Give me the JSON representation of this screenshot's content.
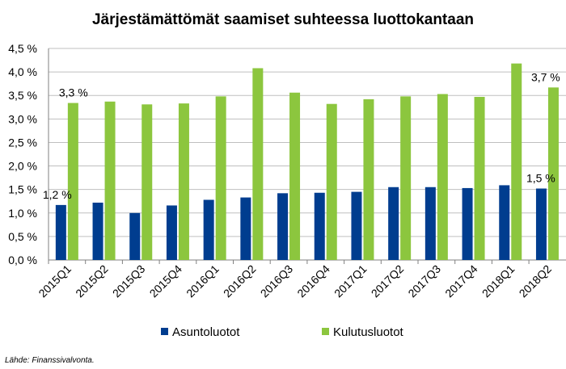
{
  "chart_data": {
    "type": "bar",
    "title": "Järjestämättömät saamiset suhteessa luottokantaan",
    "categories": [
      "2015Q1",
      "2015Q2",
      "2015Q3",
      "2015Q4",
      "2016Q1",
      "2016Q2",
      "2016Q3",
      "2016Q4",
      "2017Q1",
      "2017Q2",
      "2017Q3",
      "2017Q4",
      "2018Q1",
      "2018Q2"
    ],
    "series": [
      {
        "name": "Asuntoluotot",
        "color": "#003D8F",
        "values": [
          1.17,
          1.22,
          1.0,
          1.16,
          1.28,
          1.33,
          1.42,
          1.43,
          1.45,
          1.55,
          1.55,
          1.53,
          1.59,
          1.52
        ]
      },
      {
        "name": "Kulutusluotot",
        "color": "#8CC63E",
        "values": [
          3.34,
          3.37,
          3.31,
          3.33,
          3.48,
          4.08,
          3.56,
          3.32,
          3.42,
          3.48,
          3.53,
          3.47,
          4.18,
          3.67
        ]
      }
    ],
    "yticks": [
      "0,0 %",
      "0,5 %",
      "1,0 %",
      "1,5 %",
      "2,0 %",
      "2,5 %",
      "3,0 %",
      "3,5 %",
      "4,0 %",
      "4,5 %"
    ],
    "ylim": [
      0,
      4.5
    ],
    "grid": true,
    "legend_position": "bottom",
    "annotations": [
      {
        "text": "1,2 %",
        "series": 0,
        "index": 0
      },
      {
        "text": "3,3 %",
        "series": 1,
        "index": 0
      },
      {
        "text": "1,5 %",
        "series": 0,
        "index": 13
      },
      {
        "text": "3,7 %",
        "series": 1,
        "index": 13
      }
    ]
  },
  "source": "Lähde: Finanssivalvonta."
}
